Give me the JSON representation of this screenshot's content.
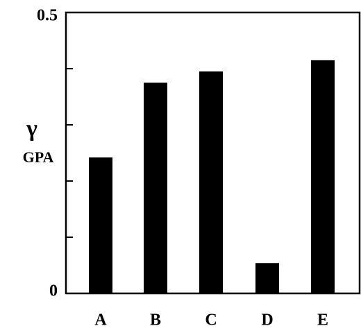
{
  "chart_data": {
    "type": "bar",
    "y_label": "γ",
    "y_label_subscript": "GPA",
    "categories": [
      "A",
      "B",
      "C",
      "D",
      "E"
    ],
    "values": [
      0.242,
      0.375,
      0.395,
      0.054,
      0.415
    ],
    "color": "#000000",
    "ylim": [
      0,
      0.5
    ],
    "yticks": [
      0,
      0.5
    ],
    "minor_yticks": [
      0.1,
      0.2,
      0.3,
      0.4
    ]
  }
}
